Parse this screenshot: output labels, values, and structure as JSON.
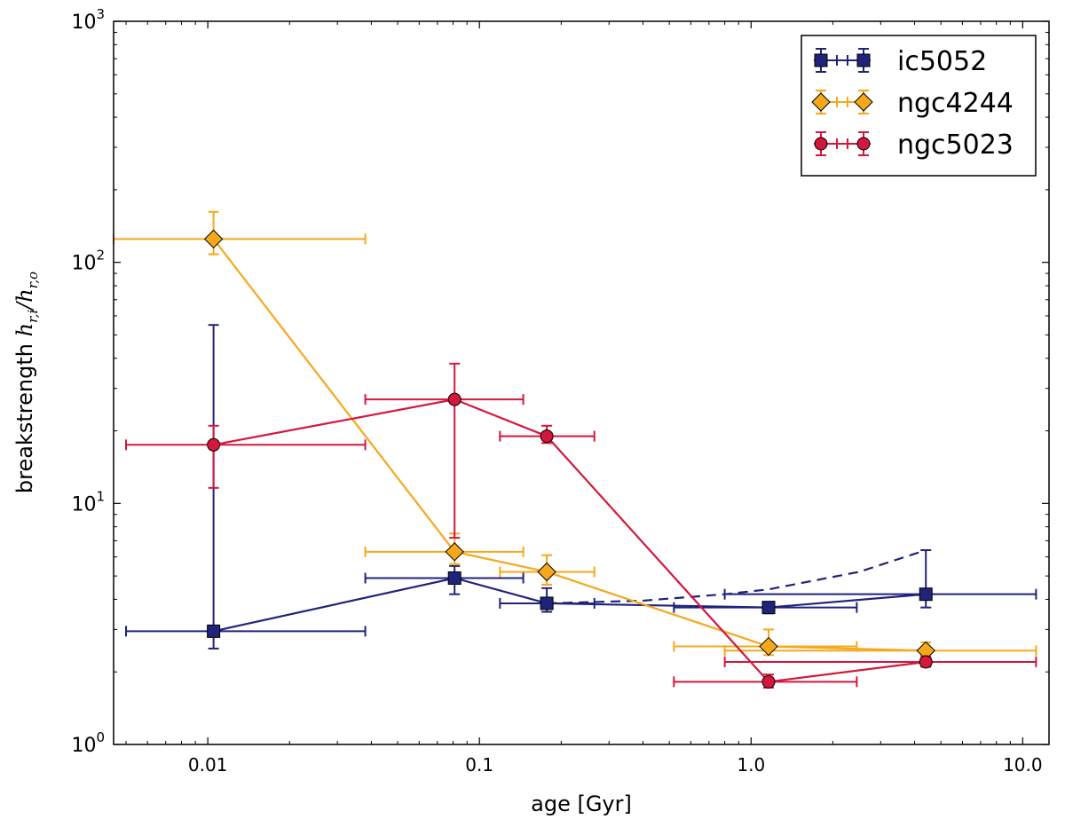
{
  "chart_data": {
    "type": "scatter",
    "title": "",
    "xlabel": "age [Gyr]",
    "ylabel_prefix": "breakstrength ",
    "ylabel_math": "h",
    "ylabel_sub1": "r,i",
    "ylabel_slash": "/",
    "ylabel_sub2": "r,o",
    "xscale": "log",
    "yscale": "log",
    "xlim": [
      0.0045,
      12.5
    ],
    "ylim": [
      1,
      1000
    ],
    "x_ticks": [
      {
        "value": 0.01,
        "label": "0.01"
      },
      {
        "value": 0.1,
        "label": "0.1"
      },
      {
        "value": 1.0,
        "label": "1.0"
      },
      {
        "value": 10.0,
        "label": "10.0"
      }
    ],
    "y_ticks": [
      {
        "value": 1,
        "base": "10",
        "exp": "0"
      },
      {
        "value": 10,
        "base": "10",
        "exp": "1"
      },
      {
        "value": 100,
        "base": "10",
        "exp": "2"
      },
      {
        "value": 1000,
        "base": "10",
        "exp": "3"
      }
    ],
    "legend_position": "top-right",
    "series": [
      {
        "name": "ic5052",
        "color": "#1f237a",
        "marker": "square",
        "points": [
          {
            "x": 0.0105,
            "y": 2.95,
            "xlo": 0.005,
            "xhi": 0.038,
            "ylo": 2.5,
            "yhi": 55
          },
          {
            "x": 0.081,
            "y": 4.9,
            "xlo": 0.038,
            "xhi": 0.145,
            "ylo": 4.2,
            "yhi": 5.5
          },
          {
            "x": 0.177,
            "y": 3.85,
            "xlo": 0.119,
            "xhi": 0.265,
            "ylo": 3.55,
            "yhi": 4.45
          },
          {
            "x": 1.16,
            "y": 3.7,
            "xlo": 0.52,
            "xhi": 2.45,
            "ylo": 3.5,
            "yhi": 3.9
          },
          {
            "x": 4.4,
            "y": 4.2,
            "xlo": 0.8,
            "xhi": 11.2,
            "ylo": 3.7,
            "yhi": 6.4
          }
        ],
        "dashed_line": {
          "x": [
            0.177,
            0.4,
            0.8,
            1.16,
            2.5,
            4.4
          ],
          "y": [
            3.85,
            3.95,
            4.2,
            4.4,
            5.2,
            6.4
          ]
        }
      },
      {
        "name": "ngc4244",
        "color": "#f5a81c",
        "marker": "diamond",
        "points": [
          {
            "x": 0.0105,
            "y": 125,
            "xlo": 0.0045,
            "xhi": 0.038,
            "ylo": 108,
            "yhi": 162
          },
          {
            "x": 0.081,
            "y": 6.3,
            "xlo": 0.038,
            "xhi": 0.145,
            "ylo": 5.6,
            "yhi": 7.5
          },
          {
            "x": 0.177,
            "y": 5.2,
            "xlo": 0.119,
            "xhi": 0.265,
            "ylo": 4.6,
            "yhi": 6.1
          },
          {
            "x": 1.16,
            "y": 2.55,
            "xlo": 0.52,
            "xhi": 2.45,
            "ylo": 2.35,
            "yhi": 3.0
          },
          {
            "x": 4.4,
            "y": 2.45,
            "xlo": 0.8,
            "xhi": 11.2,
            "ylo": 2.3,
            "yhi": 2.65
          }
        ]
      },
      {
        "name": "ngc5023",
        "color": "#d4173d",
        "marker": "circle",
        "points": [
          {
            "x": 0.0105,
            "y": 17.5,
            "xlo": 0.005,
            "xhi": 0.038,
            "ylo": 11.6,
            "yhi": 21
          },
          {
            "x": 0.081,
            "y": 27,
            "xlo": 0.038,
            "xhi": 0.145,
            "ylo": 7.2,
            "yhi": 38
          },
          {
            "x": 0.177,
            "y": 19,
            "xlo": 0.119,
            "xhi": 0.265,
            "ylo": 17.8,
            "yhi": 21
          },
          {
            "x": 1.16,
            "y": 1.82,
            "xlo": 0.52,
            "xhi": 2.45,
            "ylo": 1.72,
            "yhi": 1.95
          },
          {
            "x": 4.4,
            "y": 2.2,
            "xlo": 0.8,
            "xhi": 11.2,
            "ylo": 2.1,
            "yhi": 2.32
          }
        ]
      }
    ]
  }
}
